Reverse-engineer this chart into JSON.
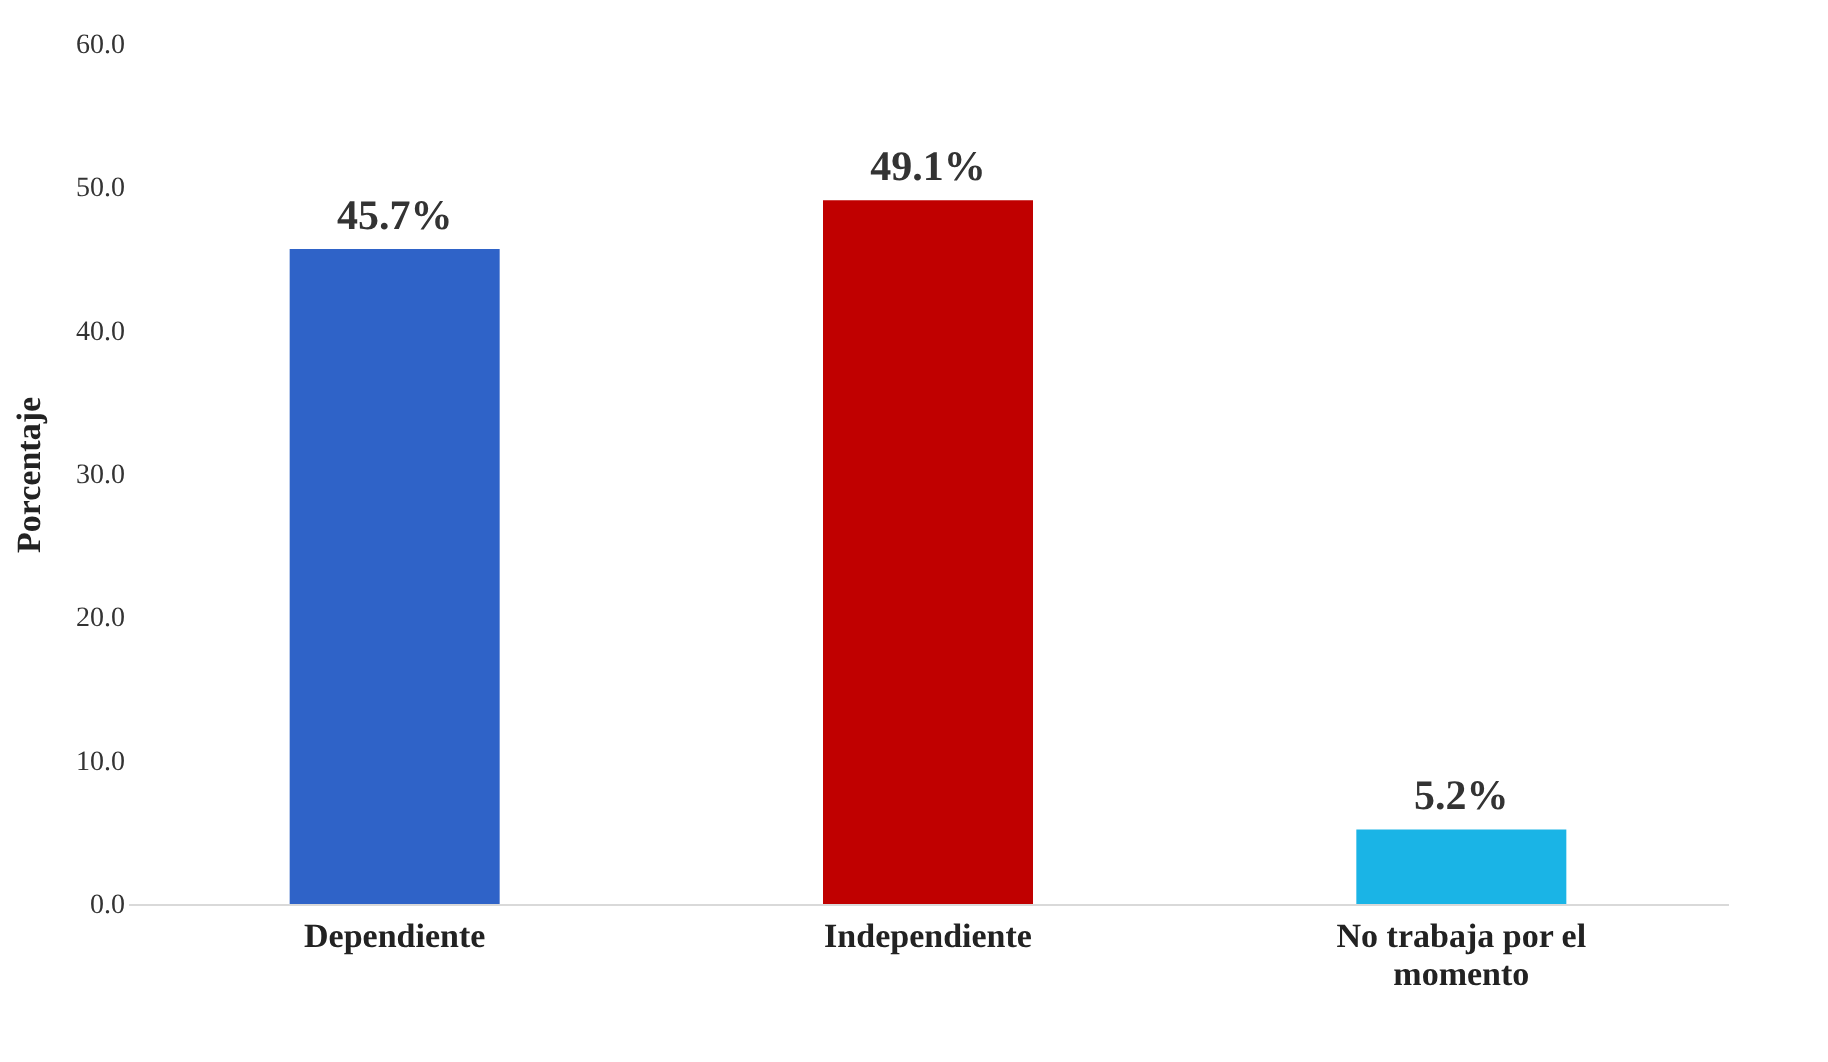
{
  "chart_data": {
    "type": "bar",
    "ylabel": "Porcentaje",
    "categories": [
      "Dependiente",
      "Independiente",
      "No trabaja por el momento"
    ],
    "values": [
      45.7,
      49.1,
      5.2
    ],
    "colors": [
      "#2f63c8",
      "#c00000",
      "#1ab4e6"
    ],
    "value_labels": [
      "45.7%",
      "49.1%",
      "5.2%"
    ],
    "ylim": [
      0,
      60
    ],
    "yticks": [
      {
        "value": 0,
        "label": "0.0"
      },
      {
        "value": 10,
        "label": "10.0"
      },
      {
        "value": 20,
        "label": "20.0"
      },
      {
        "value": 30,
        "label": "30.0"
      },
      {
        "value": 40,
        "label": "40.0"
      },
      {
        "value": 50,
        "label": "50.0"
      },
      {
        "value": 60,
        "label": "60.0"
      }
    ],
    "grid": false
  }
}
